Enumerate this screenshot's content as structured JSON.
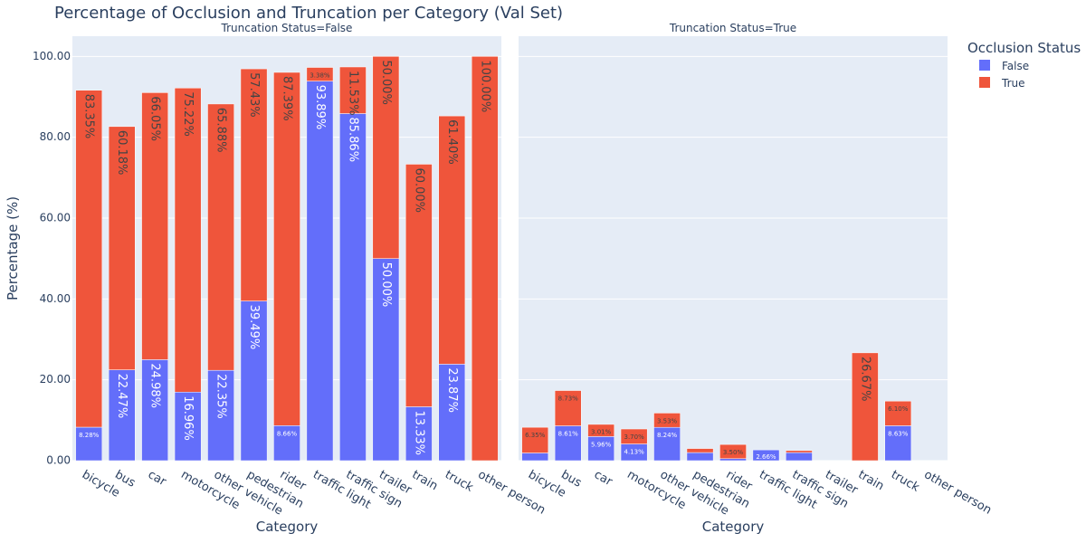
{
  "chart_data": {
    "type": "bar",
    "stacked": true,
    "title": "Percentage of Occlusion and Truncation per Category (Val Set)",
    "xlabel": "Category",
    "ylabel": "Percentage (%)",
    "ylim": [
      0,
      105
    ],
    "yticks": [
      "0.00",
      "20.00",
      "40.00",
      "60.00",
      "80.00",
      "100.00"
    ],
    "grid": true,
    "legend": {
      "title": "Occlusion Status",
      "position": "top-right",
      "entries": [
        {
          "name": "False",
          "color": "#636efa"
        },
        {
          "name": "True",
          "color": "#ef553b"
        }
      ]
    },
    "categories": [
      "bicycle",
      "bus",
      "car",
      "motorcycle",
      "other vehicle",
      "pedestrian",
      "rider",
      "traffic light",
      "traffic sign",
      "trailer",
      "train",
      "truck",
      "other person"
    ],
    "panels": [
      {
        "title": "Truncation Status=False",
        "series": [
          {
            "name": "False",
            "values": [
              8.28,
              22.47,
              24.98,
              16.96,
              22.35,
              39.49,
              8.66,
              93.89,
              85.86,
              50.0,
              13.33,
              23.87,
              0
            ],
            "labels": [
              "8.28%",
              "22.47%",
              "24.98%",
              "16.96%",
              "22.35%",
              "39.49%",
              "8.66%",
              "93.89%",
              "85.86%",
              "50.00%",
              "13.33%",
              "23.87%",
              ""
            ]
          },
          {
            "name": "True",
            "values": [
              83.35,
              60.18,
              66.05,
              75.22,
              65.88,
              57.43,
              87.39,
              3.38,
              11.53,
              50.0,
              60.0,
              61.4,
              100.0
            ],
            "labels": [
              "83.35%",
              "60.18%",
              "66.05%",
              "75.22%",
              "65.88%",
              "57.43%",
              "87.39%",
              "3.38%",
              "11.53%",
              "50.00%",
              "60.00%",
              "61.40%",
              "100.00%"
            ]
          }
        ]
      },
      {
        "title": "Truncation Status=True",
        "series": [
          {
            "name": "False",
            "values": [
              1.9,
              8.61,
              5.96,
              4.13,
              8.24,
              2.0,
              0.5,
              2.66,
              2.0,
              0,
              0,
              8.63,
              0
            ],
            "labels": [
              "",
              "8.61%",
              "5.96%",
              "4.13%",
              "8.24%",
              "",
              "",
              "2.66%",
              "",
              "",
              "",
              "8.63%",
              ""
            ]
          },
          {
            "name": "True",
            "values": [
              6.35,
              8.73,
              3.01,
              3.7,
              3.53,
              1.0,
              3.5,
              0,
              0.5,
              0,
              26.67,
              6.1,
              0
            ],
            "labels": [
              "6.35%",
              "8.73%",
              "3.01%",
              "3.70%",
              "3.53%",
              "",
              "3.50%",
              "",
              "",
              "",
              "26.67%",
              "6.10%",
              ""
            ]
          }
        ]
      }
    ]
  }
}
